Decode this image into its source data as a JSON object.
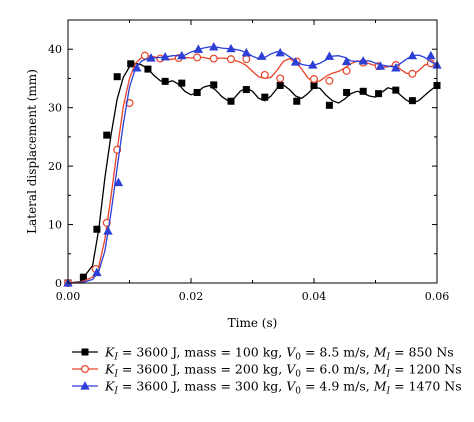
{
  "chart_data": {
    "type": "line",
    "title": "",
    "xlabel": "Time (s)",
    "ylabel": "Lateral displacement (mm)",
    "xlim": [
      0,
      0.06
    ],
    "ylim": [
      0,
      45
    ],
    "xticks": [
      0.0,
      0.02,
      0.04,
      0.06
    ],
    "xtick_labels": [
      "0.00",
      "0.02",
      "0.04",
      "0.06"
    ],
    "yticks": [
      0,
      10,
      20,
      30,
      40
    ],
    "ytick_labels": [
      "0",
      "10",
      "20",
      "30",
      "40"
    ],
    "grid": false,
    "legend_position": "bottom",
    "series": [
      {
        "name": "K_I = 3600 J, mass = 100 kg, V_0 = 8.5 m/s, M_I = 850 Ns",
        "legend": {
          "parts": [
            {
              "t": "K",
              "i": true
            },
            {
              "t": "I",
              "i": true,
              "sub": true
            },
            {
              "t": " = 3600 J, mass = 100 kg, "
            },
            {
              "t": "V",
              "i": true
            },
            {
              "t": "0",
              "sub": true
            },
            {
              "t": " = 8.5 m/s, "
            },
            {
              "t": "M",
              "i": true
            },
            {
              "t": "I",
              "i": true,
              "sub": true
            },
            {
              "t": " = 850 Ns"
            }
          ]
        },
        "color": "#000000",
        "marker": "square",
        "x": [
          0.0,
          0.002,
          0.004,
          0.005,
          0.006,
          0.007,
          0.008,
          0.009,
          0.01,
          0.011,
          0.012,
          0.013,
          0.014,
          0.015,
          0.016,
          0.017,
          0.018,
          0.019,
          0.02,
          0.021,
          0.022,
          0.023,
          0.024,
          0.025,
          0.026,
          0.027,
          0.028,
          0.029,
          0.03,
          0.031,
          0.032,
          0.033,
          0.034,
          0.035,
          0.036,
          0.037,
          0.038,
          0.039,
          0.04,
          0.041,
          0.042,
          0.043,
          0.044,
          0.045,
          0.046,
          0.047,
          0.048,
          0.049,
          0.05,
          0.051,
          0.052,
          0.053,
          0.054,
          0.055,
          0.056,
          0.057,
          0.058,
          0.059,
          0.06
        ],
        "y": [
          0.0,
          0.2,
          3.0,
          9.2,
          18.0,
          25.3,
          31.5,
          35.2,
          37.0,
          37.6,
          37.3,
          36.6,
          35.5,
          34.6,
          34.3,
          34.6,
          34.0,
          32.8,
          32.2,
          32.6,
          33.5,
          33.8,
          33.0,
          31.9,
          31.2,
          31.6,
          32.8,
          33.4,
          32.8,
          31.6,
          31.2,
          32.0,
          33.3,
          33.9,
          33.1,
          32.0,
          31.6,
          32.4,
          33.5,
          33.3,
          32.1,
          31.2,
          30.8,
          31.5,
          32.4,
          32.8,
          32.5,
          32.0,
          31.8,
          32.6,
          33.4,
          33.1,
          32.2,
          31.3,
          30.8,
          31.2,
          32.1,
          33.0,
          33.8
        ],
        "markers_x": [
          0.0,
          0.0025,
          0.0047,
          0.0063,
          0.008,
          0.0102,
          0.013,
          0.0158,
          0.0185,
          0.021,
          0.0237,
          0.0265,
          0.029,
          0.032,
          0.0345,
          0.0372,
          0.04,
          0.0425,
          0.0453,
          0.048,
          0.0505,
          0.0533,
          0.056,
          0.06
        ],
        "markers_y": [
          0.0,
          1.0,
          9.2,
          25.3,
          35.3,
          37.5,
          36.6,
          34.5,
          34.2,
          32.6,
          33.9,
          31.1,
          33.1,
          31.8,
          33.8,
          31.1,
          33.8,
          30.4,
          32.6,
          32.8,
          32.4,
          33.0,
          31.2,
          33.8
        ]
      },
      {
        "name": "K_I = 3600 J, mass = 200 kg, V_0 = 6.0 m/s, M_I = 1200 Ns",
        "legend": {
          "parts": [
            {
              "t": "K",
              "i": true
            },
            {
              "t": "I",
              "i": true,
              "sub": true
            },
            {
              "t": " = 3600 J, mass = 200 kg, "
            },
            {
              "t": "V",
              "i": true
            },
            {
              "t": "0",
              "sub": true
            },
            {
              "t": " = 6.0 m/s, "
            },
            {
              "t": "M",
              "i": true
            },
            {
              "t": "I",
              "i": true,
              "sub": true
            },
            {
              "t": " = 1200 Ns"
            }
          ]
        },
        "color": "#e8442a",
        "marker": "circle",
        "x": [
          0.0,
          0.002,
          0.004,
          0.005,
          0.006,
          0.007,
          0.008,
          0.009,
          0.01,
          0.011,
          0.012,
          0.013,
          0.014,
          0.015,
          0.016,
          0.017,
          0.018,
          0.019,
          0.02,
          0.021,
          0.022,
          0.023,
          0.024,
          0.025,
          0.026,
          0.027,
          0.028,
          0.029,
          0.03,
          0.031,
          0.032,
          0.033,
          0.034,
          0.035,
          0.036,
          0.037,
          0.038,
          0.039,
          0.04,
          0.041,
          0.042,
          0.043,
          0.044,
          0.045,
          0.046,
          0.047,
          0.048,
          0.049,
          0.05,
          0.051,
          0.052,
          0.053,
          0.054,
          0.055,
          0.056,
          0.057,
          0.058,
          0.059,
          0.06
        ],
        "y": [
          0.0,
          0.1,
          1.0,
          2.8,
          7.5,
          14.8,
          22.8,
          30.2,
          35.0,
          37.6,
          38.6,
          38.9,
          38.7,
          38.4,
          38.2,
          38.3,
          38.6,
          38.6,
          38.5,
          38.6,
          38.6,
          38.4,
          38.4,
          38.5,
          38.4,
          38.1,
          37.8,
          37.2,
          36.2,
          35.3,
          35.0,
          35.2,
          36.4,
          37.9,
          38.4,
          37.8,
          36.6,
          35.1,
          34.3,
          34.6,
          35.4,
          35.9,
          36.2,
          36.8,
          37.5,
          38.0,
          37.9,
          37.5,
          37.2,
          36.9,
          37.0,
          37.3,
          36.6,
          35.9,
          35.7,
          36.3,
          37.3,
          37.6,
          37.5
        ],
        "markers_x": [
          0.0,
          0.0045,
          0.0063,
          0.008,
          0.01,
          0.0125,
          0.015,
          0.018,
          0.021,
          0.0237,
          0.0265,
          0.029,
          0.032,
          0.0345,
          0.0372,
          0.04,
          0.0425,
          0.0453,
          0.048,
          0.0505,
          0.0533,
          0.056,
          0.059
        ],
        "markers_y": [
          0.0,
          2.4,
          10.3,
          22.8,
          30.8,
          38.9,
          38.4,
          38.5,
          38.6,
          38.4,
          38.3,
          38.3,
          35.6,
          35.0,
          37.9,
          34.9,
          34.6,
          36.3,
          37.7,
          37.1,
          37.3,
          35.8,
          37.6
        ]
      },
      {
        "name": "K_I = 3600 J, mass = 300 kg, V_0 = 4.9 m/s, M_I = 1470 Ns",
        "legend": {
          "parts": [
            {
              "t": "K",
              "i": true
            },
            {
              "t": "I",
              "i": true,
              "sub": true
            },
            {
              "t": " = 3600 J, mass = 300 kg, "
            },
            {
              "t": "V",
              "i": true
            },
            {
              "t": "0",
              "sub": true
            },
            {
              "t": " = 4.9 m/s, "
            },
            {
              "t": "M",
              "i": true
            },
            {
              "t": "I",
              "i": true,
              "sub": true
            },
            {
              "t": " = 1470 Ns"
            }
          ]
        },
        "color": "#2c3fd6",
        "marker": "triangle",
        "x": [
          0.0,
          0.002,
          0.004,
          0.005,
          0.006,
          0.007,
          0.008,
          0.009,
          0.01,
          0.011,
          0.012,
          0.013,
          0.014,
          0.015,
          0.016,
          0.017,
          0.018,
          0.019,
          0.02,
          0.021,
          0.022,
          0.023,
          0.024,
          0.025,
          0.026,
          0.027,
          0.028,
          0.029,
          0.03,
          0.031,
          0.032,
          0.033,
          0.034,
          0.035,
          0.036,
          0.037,
          0.038,
          0.039,
          0.04,
          0.041,
          0.042,
          0.043,
          0.044,
          0.045,
          0.046,
          0.047,
          0.048,
          0.049,
          0.05,
          0.051,
          0.052,
          0.053,
          0.054,
          0.055,
          0.056,
          0.057,
          0.058,
          0.059,
          0.06
        ],
        "y": [
          0.0,
          0.0,
          0.6,
          2.0,
          5.5,
          12.0,
          19.8,
          27.2,
          33.5,
          36.8,
          38.0,
          38.4,
          38.5,
          38.6,
          38.7,
          38.9,
          38.9,
          39.0,
          39.5,
          39.9,
          40.2,
          40.4,
          40.4,
          40.2,
          40.1,
          40.0,
          39.8,
          39.4,
          38.8,
          38.4,
          38.6,
          39.2,
          39.6,
          39.4,
          38.7,
          38.0,
          37.4,
          37.2,
          37.3,
          37.6,
          38.2,
          38.8,
          38.9,
          38.6,
          38.0,
          37.9,
          38.0,
          38.0,
          37.6,
          37.3,
          37.1,
          37.0,
          37.5,
          38.3,
          38.9,
          39.0,
          38.6,
          37.9,
          37.3
        ],
        "markers_x": [
          0.0,
          0.0047,
          0.0065,
          0.0082,
          0.0112,
          0.0135,
          0.0158,
          0.0185,
          0.0212,
          0.0237,
          0.0265,
          0.029,
          0.0315,
          0.0345,
          0.037,
          0.0398,
          0.0425,
          0.0453,
          0.048,
          0.0508,
          0.0533,
          0.056,
          0.059,
          0.06
        ],
        "markers_y": [
          0.0,
          1.8,
          8.9,
          17.2,
          36.8,
          38.5,
          38.7,
          38.9,
          40.0,
          40.4,
          40.1,
          39.4,
          38.8,
          39.4,
          37.8,
          37.3,
          38.8,
          37.9,
          38.0,
          37.1,
          36.8,
          38.9,
          38.9,
          37.3
        ]
      }
    ]
  }
}
